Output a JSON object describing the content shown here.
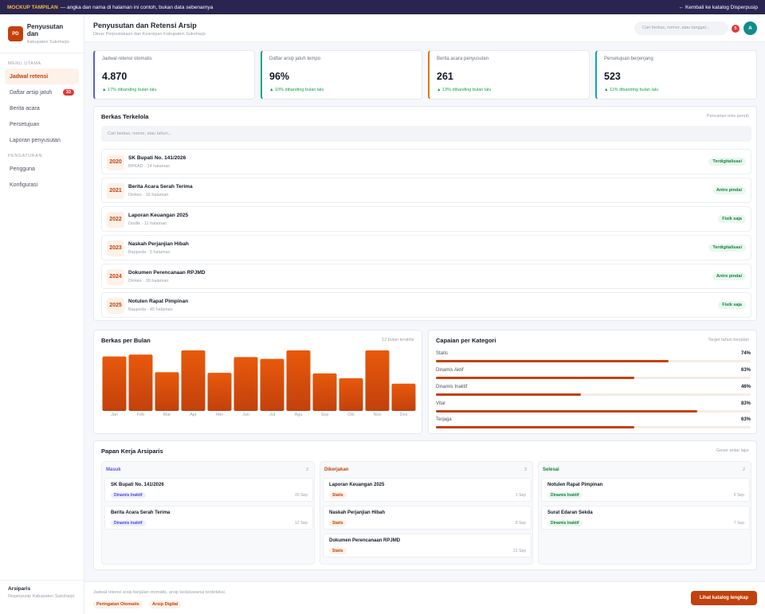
{
  "banner": {
    "tag": "MOCKUP TAMPILAN",
    "text": "— angka dan nama di halaman ini contoh, bukan data sebenarnya",
    "back_link": "← Kembali ke katalog Disperpusip"
  },
  "sidebar": {
    "logo": "PD",
    "title": "Penyusutan dan",
    "subtitle": "Kabupaten Sukoharjo",
    "section_main": "MENU UTAMA",
    "items": [
      {
        "label": "Jadwal retensi",
        "active": true
      },
      {
        "label": "Daftar arsip jatuh",
        "badge": "33"
      },
      {
        "label": "Berita acara"
      },
      {
        "label": "Persetujuan"
      },
      {
        "label": "Laporan penyusutan"
      }
    ],
    "section_settings": "PENGATURAN",
    "settings_items": [
      {
        "label": "Pengguna"
      },
      {
        "label": "Konfigurasi"
      }
    ],
    "user": {
      "name": "Arsiparis",
      "org": "Disperpusip Kabupaten Sukoharjo"
    }
  },
  "header": {
    "title": "Penyusutan dan Retensi Arsip",
    "subtitle": "Dinas Perpustakaan dan Kearsipan Kabupaten Sukoharjo",
    "search_placeholder": "Cari berkas, nomor, atau tanggal...",
    "notif_count": "5",
    "avatar": "A"
  },
  "stats": [
    {
      "label": "Jadwal retensi otomatis",
      "value": "4.870",
      "delta": "▲ 17% dibanding bulan lalu",
      "accent": "#5b5bd6"
    },
    {
      "label": "Daftar arsip jatuh tempo",
      "value": "96%",
      "delta": "▲ 10% dibanding bulan lalu",
      "accent": "#16a37f"
    },
    {
      "label": "Berita acara penyusutan",
      "value": "261",
      "delta": "▲ 13% dibanding bulan lalu",
      "accent": "#d97706"
    },
    {
      "label": "Persetujuan berjenjang",
      "value": "523",
      "delta": "▲ 11% dibanding bulan lalu",
      "accent": "#0ea5b5"
    }
  ],
  "records": {
    "title": "Berkas Terkelola",
    "note": "Pencarian teks penuh",
    "search_placeholder": "Cari berkas, nomor, atau tahun...",
    "items": [
      {
        "year": "2020",
        "title": "SK Bupati No. 141/2026",
        "meta": "BPKAD · 14 halaman",
        "status": "Terdigitalisasi"
      },
      {
        "year": "2021",
        "title": "Berita Acara Serah Terima",
        "meta": "Dinkes · 16 halaman",
        "status": "Antre pindai"
      },
      {
        "year": "2022",
        "title": "Laporan Keuangan 2025",
        "meta": "Disdik · 11 halaman",
        "status": "Fisik saja"
      },
      {
        "year": "2023",
        "title": "Naskah Perjanjian Hibah",
        "meta": "Bappeda · 5 halaman",
        "status": "Terdigitalisasi"
      },
      {
        "year": "2024",
        "title": "Dokumen Perencanaan RPJMD",
        "meta": "Dinkes · 39 halaman",
        "status": "Antre pindai"
      },
      {
        "year": "2025",
        "title": "Notulen Rapat Pimpinan",
        "meta": "Bappeda · 45 halaman",
        "status": "Fisik saja"
      }
    ]
  },
  "monthly": {
    "title": "Berkas per Bulan",
    "note": "12 bulan terakhir"
  },
  "chart_data": {
    "type": "bar",
    "categories": [
      "Jan",
      "Feb",
      "Mar",
      "Apr",
      "Mei",
      "Jun",
      "Jul",
      "Agu",
      "Sep",
      "Okt",
      "Nov",
      "Des"
    ],
    "values": [
      90,
      93,
      64,
      100,
      63,
      89,
      86,
      100,
      62,
      54,
      100,
      45
    ],
    "ylim": [
      0,
      100
    ],
    "title": "Berkas per Bulan",
    "grid": false,
    "color": "#d9500f"
  },
  "categories_progress": {
    "title": "Capaian per Kategori",
    "note": "Target tahun berjalan",
    "items": [
      {
        "name": "Statis",
        "pct_label": "74%",
        "value": 74
      },
      {
        "name": "Dinamis Aktif",
        "pct_label": "63%",
        "value": 63
      },
      {
        "name": "Dinamis Inaktif",
        "pct_label": "46%",
        "value": 46
      },
      {
        "name": "Vital",
        "pct_label": "83%",
        "value": 83
      },
      {
        "name": "Terjaga",
        "pct_label": "63%",
        "value": 63
      }
    ]
  },
  "board": {
    "title": "Papan Kerja Arsiparis",
    "note": "Geser antar lajur",
    "columns": [
      {
        "name": "Masuk",
        "count": "2",
        "color": "#5b5bd6",
        "tasks": [
          {
            "title": "SK Bupati No. 141/2026",
            "tag": "Dinamis Inaktif",
            "date": "20 Sep"
          },
          {
            "title": "Berita Acara Serah Terima",
            "tag": "Dinamis Inaktif",
            "date": "12 Sep"
          }
        ]
      },
      {
        "name": "Dikerjakan",
        "count": "3",
        "color": "#c2410c",
        "tasks": [
          {
            "title": "Laporan Keuangan 2025",
            "tag": "Statis",
            "date": "1 Sep"
          },
          {
            "title": "Naskah Perjanjian Hibah",
            "tag": "Statis",
            "date": "8 Sep"
          },
          {
            "title": "Dokumen Perencanaan RPJMD",
            "tag": "Statis",
            "date": "21 Sep"
          }
        ]
      },
      {
        "name": "Selesai",
        "count": "2",
        "color": "#15803d",
        "tasks": [
          {
            "title": "Notulen Rapat Pimpinan",
            "tag": "Dinamis Inaktif",
            "date": "6 Sep"
          },
          {
            "title": "Surat Edaran Sekda",
            "tag": "Dinamis Inaktif",
            "date": "7 Sep"
          }
        ]
      }
    ]
  },
  "footer": {
    "text": "Jadwal retensi arsip berjalan otomatis, arsip kedaluwarsa terdeteksi.",
    "chip1": "Peringatan Otomatis",
    "chip2": "Arsip Digital",
    "cta": "Lihat katalog lengkap"
  }
}
